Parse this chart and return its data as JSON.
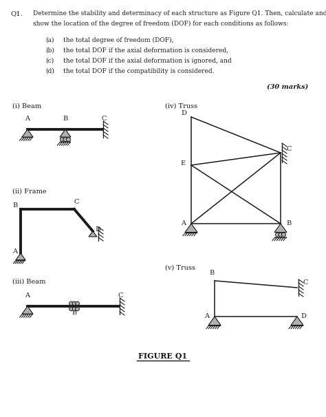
{
  "bg_color": "#ffffff",
  "dark": "#1a1a1a",
  "gray_fill": "#b0b0b0",
  "line1": "Determine the stability and determinacy of each structure as Figure Q1. Then, calculate and",
  "line2": "show the location of the degree of freedom (DOF) for each conditions as follows:",
  "items_labels": [
    "(a)",
    "(b)",
    "(c)",
    "(d)"
  ],
  "items_texts": [
    "the total degree of freedom (DOF),",
    "the total DOF if the axial deformation is considered,",
    "the total DOF if the axial deformation is ignored, and",
    "the total DOF if the compatibility is considered."
  ],
  "marks": "(30 marks)",
  "figure_label": "FIGURE Q1",
  "labels": {
    "i": "(i) Beam",
    "ii": "(ii) Frame",
    "iii": "(iii) Beam",
    "iv": "(iv) Truss",
    "v": "(v) Truss"
  }
}
